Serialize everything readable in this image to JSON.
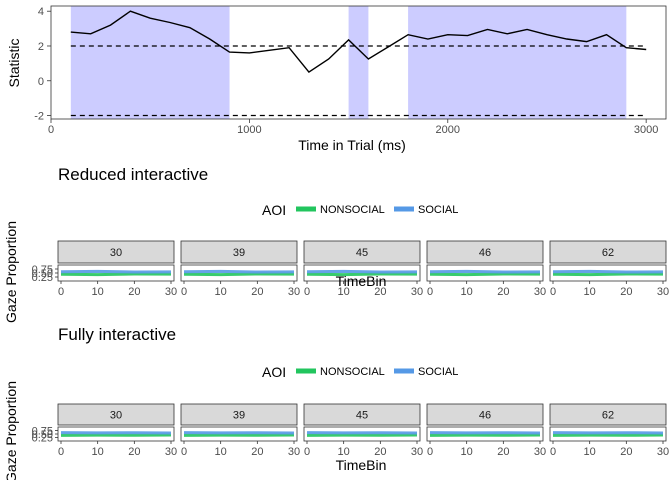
{
  "colors": {
    "sig": "#ccccff",
    "line": "#000000",
    "nonsocial": "#22c55e",
    "social": "#5599e6",
    "strip": "#d9d9d9"
  },
  "chart_data": [
    {
      "type": "line",
      "xlabel": "Time in Trial (ms)",
      "ylabel": "Statistic",
      "xlim": [
        0,
        3100
      ],
      "ylim": [
        -2.2,
        4.3
      ],
      "x_ticks": [
        0,
        1000,
        2000,
        3000
      ],
      "y_ticks": [
        -2,
        0,
        2,
        4
      ],
      "x": [
        100,
        200,
        300,
        400,
        500,
        600,
        700,
        800,
        900,
        1000,
        1100,
        1200,
        1300,
        1400,
        1500,
        1600,
        1700,
        1800,
        1900,
        2000,
        2100,
        2200,
        2300,
        2400,
        2500,
        2600,
        2700,
        2800,
        2900,
        3000
      ],
      "values": [
        2.8,
        2.7,
        3.2,
        4.0,
        3.6,
        3.35,
        3.05,
        2.4,
        1.65,
        1.6,
        1.75,
        1.9,
        0.5,
        1.25,
        2.35,
        1.25,
        1.95,
        2.65,
        2.4,
        2.65,
        2.6,
        2.95,
        2.7,
        2.95,
        2.65,
        2.4,
        2.25,
        2.65,
        1.9,
        1.8
      ],
      "thresholds": [
        2,
        -2
      ],
      "significant_ranges": [
        [
          100,
          900
        ],
        [
          1500,
          1600
        ],
        [
          1800,
          2900
        ]
      ],
      "grid": false
    },
    {
      "type": "line",
      "title": "Reduced interactive",
      "legend_title": "AOI",
      "legend": [
        "NONSOCIAL",
        "SOCIAL"
      ],
      "legend_position": "top",
      "facets": [
        "30",
        "39",
        "45",
        "46",
        "62"
      ],
      "xlabel": "TimeBin",
      "ylabel": "Gaze Proportion",
      "x_ticks": [
        0,
        10,
        20,
        30
      ],
      "y_ticks": [
        "0.25",
        "0.50",
        "0.75"
      ],
      "xlim": [
        0,
        30
      ],
      "ylim": [
        0,
        1
      ],
      "series": [
        {
          "name": "NONSOCIAL",
          "values": [
            0.42,
            0.4,
            0.44,
            0.43
          ]
        },
        {
          "name": "SOCIAL",
          "values": [
            0.58,
            0.6,
            0.56,
            0.57
          ]
        }
      ]
    },
    {
      "type": "line",
      "title": "Fully interactive",
      "legend_title": "AOI",
      "legend": [
        "NONSOCIAL",
        "SOCIAL"
      ],
      "legend_position": "top",
      "facets": [
        "30",
        "39",
        "45",
        "46",
        "62"
      ],
      "xlabel": "TimeBin",
      "ylabel": "Gaze Proportion",
      "x_ticks": [
        0,
        10,
        20,
        30
      ],
      "y_ticks": [
        "0.25",
        "0.50",
        "0.75"
      ],
      "xlim": [
        0,
        30
      ],
      "ylim": [
        0,
        1
      ],
      "series": [
        {
          "name": "NONSOCIAL",
          "values": [
            0.4,
            0.42,
            0.41,
            0.43
          ]
        },
        {
          "name": "SOCIAL",
          "values": [
            0.6,
            0.58,
            0.59,
            0.57
          ]
        }
      ]
    }
  ]
}
